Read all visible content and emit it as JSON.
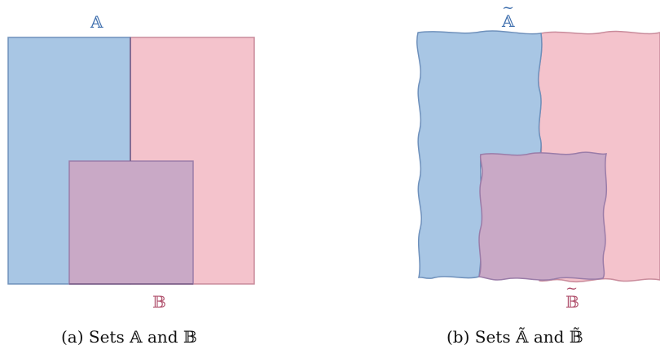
{
  "panel_a": {
    "label_a": "𝔸",
    "label_b": "𝔹",
    "caption": "(a) Sets 𝔸 and 𝔹"
  },
  "panel_b": {
    "label_a": "𝔸",
    "label_b": "𝔹",
    "tilde": "~",
    "caption": "(b) Sets 𝔸̃ and 𝔹̃"
  },
  "colors": {
    "set_a_fill": "#a8c6e4",
    "set_a_stroke": "#6e90bb",
    "set_b_fill": "#f4c3cc",
    "set_b_stroke": "#c98b9b",
    "intersection_fill": "#c9a9c6",
    "label_a": "#3f6fae",
    "label_b": "#b0506c"
  }
}
